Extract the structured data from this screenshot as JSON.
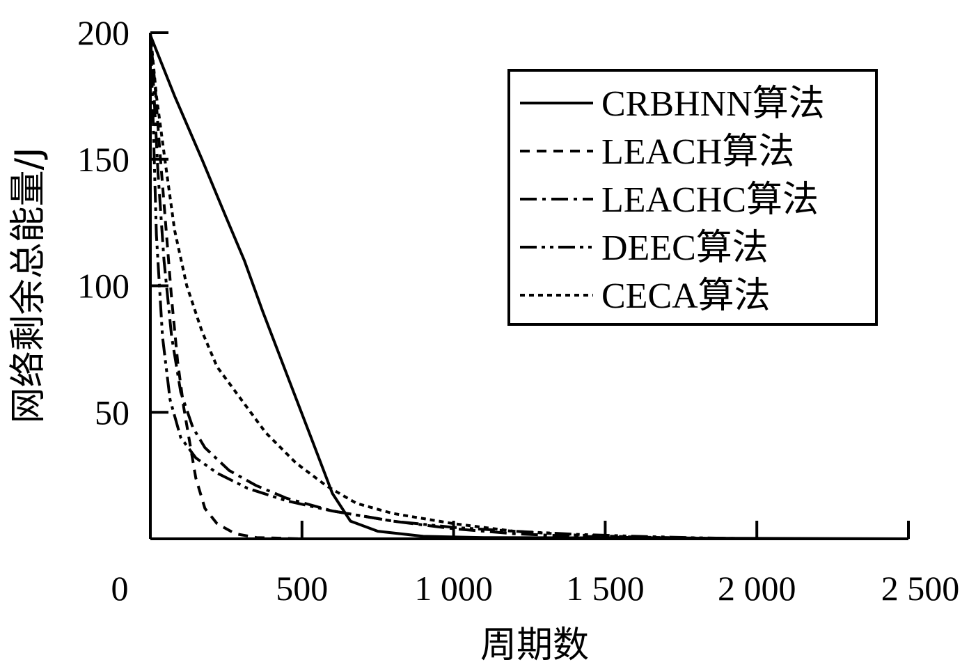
{
  "chart_data": {
    "type": "line",
    "title": "",
    "xlabel": "周期数",
    "ylabel": "网络剩余总能量/J",
    "xlim": [
      0,
      2500
    ],
    "ylim": [
      0,
      200
    ],
    "x_ticks": [
      0,
      500,
      1000,
      1500,
      2000,
      2500
    ],
    "x_tick_labels": [
      "0",
      "500",
      "1 000",
      "1 500",
      "2 000",
      "2 500"
    ],
    "y_ticks": [
      50,
      100,
      150,
      200
    ],
    "y_tick_labels": [
      "50",
      "100",
      "150",
      "200"
    ],
    "grid": false,
    "legend_position": "top-right",
    "series": [
      {
        "name": "CRBHNN算法",
        "dash": "",
        "points": [
          [
            0,
            199
          ],
          [
            80,
            175
          ],
          [
            170,
            150
          ],
          [
            250,
            127
          ],
          [
            310,
            110
          ],
          [
            370,
            90
          ],
          [
            450,
            65
          ],
          [
            530,
            40
          ],
          [
            600,
            18
          ],
          [
            660,
            7
          ],
          [
            750,
            3
          ],
          [
            900,
            1
          ],
          [
            1100,
            0.5
          ],
          [
            2500,
            0
          ]
        ]
      },
      {
        "name": "LEACH算法",
        "dash": "14 10",
        "points": [
          [
            0,
            198
          ],
          [
            15,
            180
          ],
          [
            30,
            155
          ],
          [
            50,
            125
          ],
          [
            70,
            95
          ],
          [
            90,
            70
          ],
          [
            110,
            52
          ],
          [
            130,
            38
          ],
          [
            150,
            24
          ],
          [
            180,
            12
          ],
          [
            220,
            6
          ],
          [
            280,
            2
          ],
          [
            350,
            0.5
          ],
          [
            500,
            0
          ],
          [
            2500,
            0
          ]
        ]
      },
      {
        "name": "LEACHC算法",
        "dash": "24 8 5 8",
        "points": [
          [
            0,
            198
          ],
          [
            10,
            180
          ],
          [
            25,
            145
          ],
          [
            45,
            110
          ],
          [
            70,
            80
          ],
          [
            100,
            58
          ],
          [
            140,
            44
          ],
          [
            180,
            36
          ],
          [
            260,
            27
          ],
          [
            350,
            21
          ],
          [
            450,
            16
          ],
          [
            600,
            11
          ],
          [
            800,
            7
          ],
          [
            1000,
            4
          ],
          [
            1200,
            2
          ],
          [
            1400,
            1
          ],
          [
            1600,
            0.5
          ],
          [
            1900,
            0.2
          ],
          [
            2100,
            0
          ]
        ]
      },
      {
        "name": "DEEC算法",
        "dash": "24 7 5 7 5 7",
        "points": [
          [
            0,
            200
          ],
          [
            8,
            170
          ],
          [
            20,
            120
          ],
          [
            40,
            80
          ],
          [
            65,
            55
          ],
          [
            100,
            40
          ],
          [
            150,
            32
          ],
          [
            220,
            26
          ],
          [
            320,
            20
          ],
          [
            450,
            15
          ],
          [
            600,
            11
          ],
          [
            800,
            7
          ],
          [
            1000,
            4.5
          ],
          [
            1200,
            3
          ],
          [
            1400,
            1.8
          ],
          [
            1600,
            1
          ],
          [
            1800,
            0.4
          ],
          [
            2000,
            0
          ]
        ]
      },
      {
        "name": "CECA算法",
        "dash": "7 6",
        "points": [
          [
            0,
            200
          ],
          [
            20,
            175
          ],
          [
            50,
            148
          ],
          [
            80,
            122
          ],
          [
            120,
            100
          ],
          [
            170,
            82
          ],
          [
            220,
            68
          ],
          [
            300,
            55
          ],
          [
            380,
            42
          ],
          [
            480,
            30
          ],
          [
            580,
            21
          ],
          [
            680,
            14
          ],
          [
            800,
            10
          ],
          [
            1000,
            6
          ],
          [
            1200,
            3
          ],
          [
            1400,
            1.5
          ],
          [
            1600,
            0.7
          ],
          [
            1800,
            0.3
          ],
          [
            2000,
            0
          ]
        ]
      }
    ]
  }
}
